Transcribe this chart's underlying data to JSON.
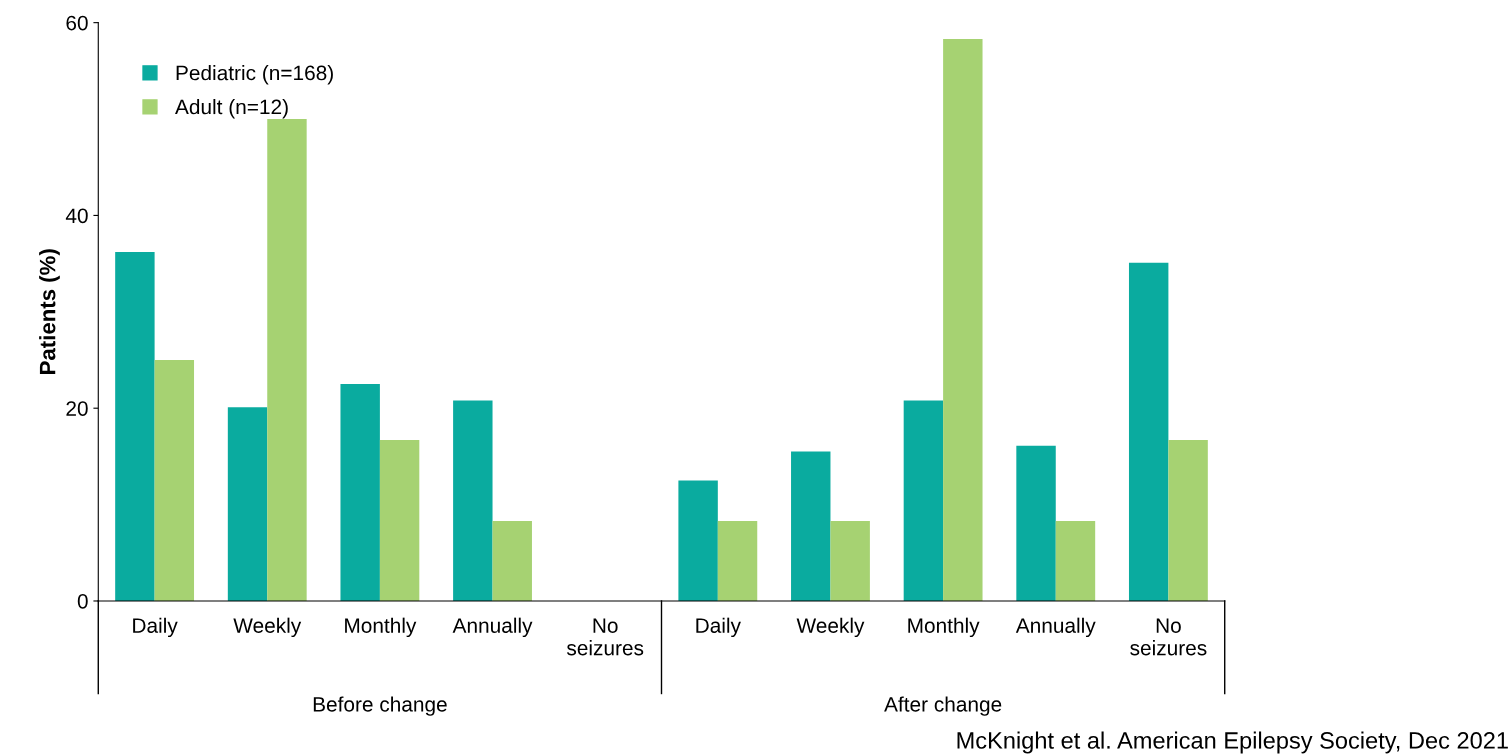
{
  "chart_data": {
    "type": "bar",
    "categories": [
      "Daily",
      "Weekly",
      "Monthly",
      "Annually",
      "No\nseizures",
      "Daily",
      "Weekly",
      "Monthly",
      "Annually",
      "No\nseizures"
    ],
    "series": [
      {
        "name": "Pediatric (n=168)",
        "color": "#0aab9f",
        "values": [
          36.2,
          20.1,
          22.5,
          20.8,
          0,
          12.5,
          15.5,
          20.8,
          16.1,
          35.1
        ]
      },
      {
        "name": "Adult (n=12)",
        "color": "#a6d272",
        "values": [
          25,
          50,
          16.7,
          8.3,
          0,
          8.3,
          8.3,
          58.3,
          8.3,
          16.7
        ]
      }
    ],
    "ylabel": "Patients (%)",
    "ylim": [
      0,
      60
    ],
    "yticks": [
      0,
      20,
      40,
      60
    ],
    "annotations": [
      "Before change",
      "After change",
      "McKnight et al. American Epilepsy Society, Dec 2021"
    ],
    "grid": false,
    "legend": "top left"
  }
}
